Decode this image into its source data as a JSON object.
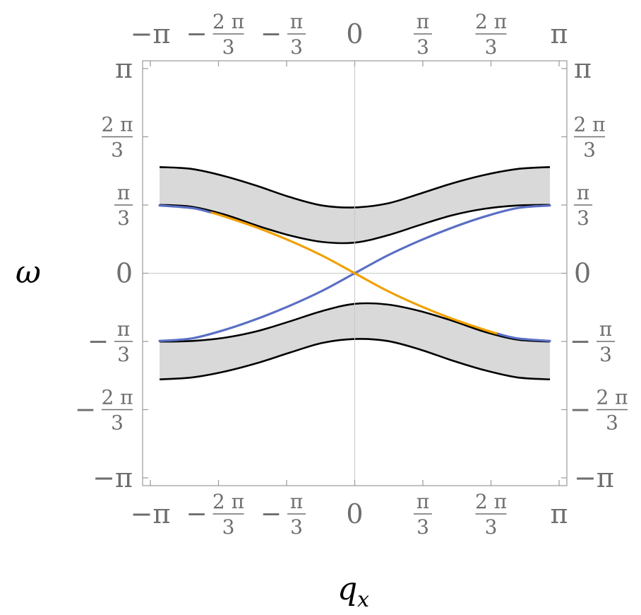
{
  "chart_data": {
    "type": "area",
    "title": "",
    "xlabel": "q",
    "xlabel_sub": "x",
    "ylabel": "ω",
    "xlim": [
      -3.14159,
      3.14159
    ],
    "ylim": [
      -3.14159,
      3.14159
    ],
    "grid": false,
    "frame_ticks": "all four sides",
    "origin_lines": true,
    "x_ticks": [
      {
        "value": -3.14159,
        "sign": "−",
        "num": "π",
        "den": ""
      },
      {
        "value": -2.0944,
        "sign": "−",
        "num": "2 π",
        "den": "3"
      },
      {
        "value": -1.0472,
        "sign": "−",
        "num": "π",
        "den": "3"
      },
      {
        "value": 0,
        "sign": "",
        "num": "0",
        "den": ""
      },
      {
        "value": 1.0472,
        "sign": "",
        "num": "π",
        "den": "3"
      },
      {
        "value": 2.0944,
        "sign": "",
        "num": "2 π",
        "den": "3"
      },
      {
        "value": 3.14159,
        "sign": "",
        "num": "π",
        "den": ""
      }
    ],
    "y_ticks": [
      {
        "value": 3.14159,
        "sign": "",
        "num": "π",
        "den": ""
      },
      {
        "value": 2.0944,
        "sign": "",
        "num": "2 π",
        "den": "3"
      },
      {
        "value": 1.0472,
        "sign": "",
        "num": "π",
        "den": "3"
      },
      {
        "value": 0,
        "sign": "",
        "num": "0",
        "den": ""
      },
      {
        "value": -1.0472,
        "sign": "−",
        "num": "π",
        "den": "3"
      },
      {
        "value": -2.0944,
        "sign": "−",
        "num": "2 π",
        "den": "3"
      },
      {
        "value": -3.14159,
        "sign": "−",
        "num": "π",
        "den": ""
      }
    ],
    "x": [
      -3.0,
      -2.5,
      -2.0,
      -1.5,
      -1.0,
      -0.5,
      0.0,
      0.5,
      1.0,
      1.5,
      2.0,
      2.5,
      3.0
    ],
    "bands": [
      {
        "color": "#d9d9d9",
        "upper": [
          1.63,
          1.6,
          1.49,
          1.34,
          1.17,
          1.04,
          1.01,
          1.07,
          1.22,
          1.38,
          1.51,
          1.6,
          1.63
        ],
        "lower": [
          1.05,
          1.02,
          0.9,
          0.73,
          0.58,
          0.48,
          0.47,
          0.58,
          0.74,
          0.89,
          0.99,
          1.04,
          1.05
        ]
      },
      {
        "color": "#d9d9d9",
        "upper": [
          -1.05,
          -1.04,
          -0.99,
          -0.89,
          -0.74,
          -0.58,
          -0.47,
          -0.48,
          -0.58,
          -0.73,
          -0.9,
          -1.02,
          -1.05
        ],
        "lower": [
          -1.63,
          -1.6,
          -1.51,
          -1.38,
          -1.22,
          -1.07,
          -1.01,
          -1.04,
          -1.17,
          -1.34,
          -1.49,
          -1.6,
          -1.63
        ]
      }
    ],
    "series": [
      {
        "color": "#5a6fc4",
        "x": [
          -3.0,
          -2.5,
          -2.0,
          -1.5,
          -1.0,
          -0.5,
          0.0,
          0.5,
          1.0,
          1.5,
          2.0,
          2.5,
          3.0
        ],
        "values": [
          -1.04,
          -1.0,
          -0.87,
          -0.7,
          -0.5,
          -0.27,
          0.0,
          0.27,
          0.5,
          0.7,
          0.87,
          1.0,
          1.04
        ]
      },
      {
        "color": "#5a6fc4",
        "x": [
          -3.0,
          -2.5,
          -2.2
        ],
        "values": [
          1.04,
          1.0,
          0.93
        ]
      },
      {
        "color": "#f0a000",
        "x": [
          -2.2,
          -2.0,
          -1.5,
          -1.0,
          -0.5,
          0.0,
          0.5,
          1.0,
          1.5,
          2.0,
          2.2
        ],
        "values": [
          0.93,
          0.87,
          0.7,
          0.5,
          0.27,
          0.0,
          -0.27,
          -0.5,
          -0.7,
          -0.87,
          -0.93
        ]
      },
      {
        "color": "#5a6fc4",
        "x": [
          2.2,
          2.5,
          3.0
        ],
        "values": [
          -0.93,
          -1.0,
          -1.04
        ]
      }
    ]
  }
}
